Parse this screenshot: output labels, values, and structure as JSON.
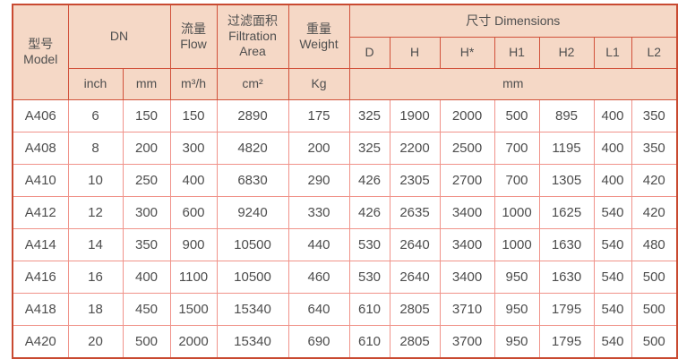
{
  "table": {
    "colors": {
      "header_bg": "#f5d8c6",
      "grid_strong": "#d1513a",
      "grid_light": "#f0938a",
      "outer_border": "#c94a31",
      "text": "#4d4d4d"
    },
    "header": {
      "model": {
        "cn": "型号",
        "en": "Model"
      },
      "dn": "DN",
      "flow": {
        "cn": "流量",
        "en": "Flow"
      },
      "filtration": {
        "cn": "过滤面积",
        "en_line1": "Filtration",
        "en_line2": "Area"
      },
      "weight": {
        "cn": "重量",
        "en": "Weight"
      },
      "dimensions": "尺寸 Dimensions",
      "dim_cols": [
        "D",
        "H",
        "H*",
        "H1",
        "H2",
        "L1",
        "L2"
      ],
      "units": {
        "inch": "inch",
        "mm": "mm",
        "flow": "m³/h",
        "area": "cm²",
        "weight": "Kg",
        "dim": "mm"
      }
    },
    "rows": [
      {
        "model": "A406",
        "dn_inch": "6",
        "dn_mm": "150",
        "flow": "150",
        "area": "2890",
        "weight": "175",
        "dims": [
          "325",
          "1900",
          "2000",
          "500",
          "895",
          "400",
          "350"
        ]
      },
      {
        "model": "A408",
        "dn_inch": "8",
        "dn_mm": "200",
        "flow": "300",
        "area": "4820",
        "weight": "200",
        "dims": [
          "325",
          "2200",
          "2500",
          "700",
          "1195",
          "400",
          "350"
        ]
      },
      {
        "model": "A410",
        "dn_inch": "10",
        "dn_mm": "250",
        "flow": "400",
        "area": "6830",
        "weight": "290",
        "dims": [
          "426",
          "2305",
          "2700",
          "700",
          "1305",
          "400",
          "420"
        ]
      },
      {
        "model": "A412",
        "dn_inch": "12",
        "dn_mm": "300",
        "flow": "600",
        "area": "9240",
        "weight": "330",
        "dims": [
          "426",
          "2635",
          "3400",
          "1000",
          "1625",
          "540",
          "420"
        ]
      },
      {
        "model": "A414",
        "dn_inch": "14",
        "dn_mm": "350",
        "flow": "900",
        "area": "10500",
        "weight": "440",
        "dims": [
          "530",
          "2640",
          "3400",
          "1000",
          "1630",
          "540",
          "480"
        ]
      },
      {
        "model": "A416",
        "dn_inch": "16",
        "dn_mm": "400",
        "flow": "1100",
        "area": "10500",
        "weight": "460",
        "dims": [
          "530",
          "2640",
          "3400",
          "950",
          "1630",
          "540",
          "500"
        ]
      },
      {
        "model": "A418",
        "dn_inch": "18",
        "dn_mm": "450",
        "flow": "1500",
        "area": "15340",
        "weight": "640",
        "dims": [
          "610",
          "2805",
          "3710",
          "950",
          "1795",
          "540",
          "500"
        ]
      },
      {
        "model": "A420",
        "dn_inch": "20",
        "dn_mm": "500",
        "flow": "2000",
        "area": "15340",
        "weight": "690",
        "dims": [
          "610",
          "2805",
          "3700",
          "950",
          "1795",
          "540",
          "500"
        ]
      }
    ]
  }
}
